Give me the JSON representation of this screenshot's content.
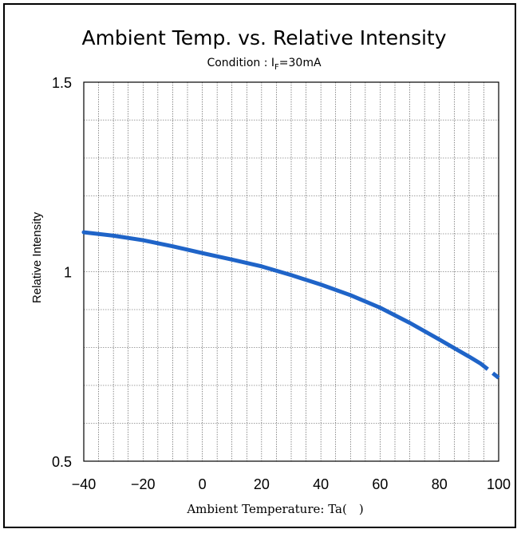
{
  "chart_data": {
    "type": "line",
    "title": "Ambient Temp. vs. Relative Intensity",
    "subtitle": {
      "prefix": "Condition : I",
      "subscript": "F",
      "suffix": "=30mA"
    },
    "xlabel": "Ambient Temperature: Ta( )",
    "ylabel": "Relative Intensity",
    "xlim": [
      -40,
      100
    ],
    "ylim": [
      0.5,
      1.5
    ],
    "x_ticks": [
      -40,
      -20,
      0,
      20,
      40,
      60,
      80,
      100
    ],
    "x_tick_labels": [
      "−40",
      "−20",
      "0",
      "20",
      "40",
      "60",
      "80",
      "100"
    ],
    "y_ticks": [
      0.5,
      1,
      1.5
    ],
    "y_tick_labels": [
      "0.5",
      "1",
      "1.5"
    ],
    "grid": true,
    "series": [
      {
        "color": "#1f64c8",
        "style": "solid",
        "x": [
          -40,
          -30,
          -20,
          -10,
          0,
          10,
          20,
          30,
          40,
          50,
          60,
          70,
          80,
          90,
          94
        ],
        "y": [
          1.104,
          1.095,
          1.083,
          1.067,
          1.049,
          1.032,
          1.014,
          0.991,
          0.966,
          0.938,
          0.905,
          0.865,
          0.821,
          0.776,
          0.757
        ]
      },
      {
        "color": "#1f64c8",
        "style": "dashed",
        "x": [
          94,
          100
        ],
        "y": [
          0.757,
          0.72
        ]
      }
    ]
  }
}
